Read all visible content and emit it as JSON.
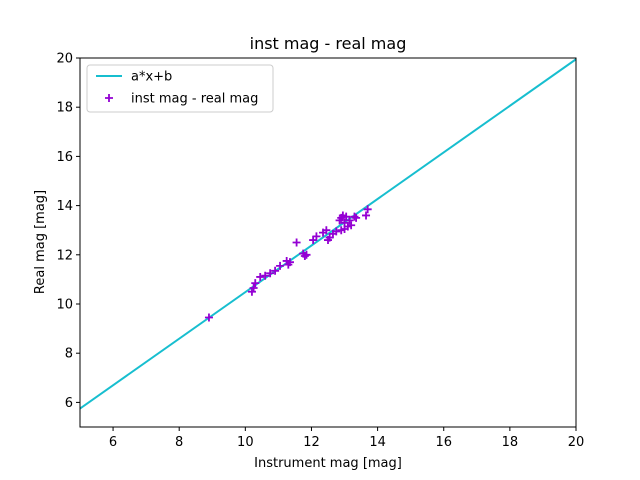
{
  "chart_data": {
    "type": "scatter",
    "title": "inst mag - real mag",
    "xlabel": "Instrument mag [mag]",
    "ylabel": "Real mag [mag]",
    "xlim": [
      5,
      20
    ],
    "ylim": [
      5,
      20
    ],
    "xticks": [
      6,
      8,
      10,
      12,
      14,
      16,
      18,
      20
    ],
    "yticks": [
      6,
      8,
      10,
      12,
      14,
      16,
      18,
      20
    ],
    "legend_position": "top-left",
    "grid": false,
    "colors": {
      "fit_line": "#17becf",
      "points": "#9400d3"
    },
    "series": [
      {
        "name": "a*x+b",
        "kind": "line",
        "x": [
          5,
          20
        ],
        "y": [
          5.75,
          19.95
        ]
      },
      {
        "name": "inst mag - real mag",
        "kind": "scatter",
        "marker": "+",
        "x": [
          8.9,
          10.2,
          10.25,
          10.3,
          10.45,
          10.6,
          10.75,
          10.9,
          11.05,
          11.25,
          11.3,
          11.35,
          11.55,
          11.75,
          11.8,
          11.85,
          12.05,
          12.15,
          12.35,
          12.45,
          12.5,
          12.55,
          12.65,
          12.75,
          12.85,
          12.9,
          12.9,
          12.95,
          13.0,
          13.0,
          13.05,
          13.1,
          13.15,
          13.2,
          13.3,
          13.35,
          13.65,
          13.7
        ],
        "y": [
          9.45,
          10.5,
          10.65,
          10.85,
          11.1,
          11.15,
          11.25,
          11.35,
          11.55,
          11.75,
          11.6,
          11.7,
          12.5,
          12.05,
          11.95,
          12.0,
          12.6,
          12.75,
          12.9,
          13.0,
          12.6,
          12.7,
          12.85,
          12.95,
          13.4,
          13.0,
          13.5,
          13.6,
          13.05,
          13.3,
          13.55,
          13.15,
          13.4,
          13.2,
          13.55,
          13.5,
          13.6,
          13.85
        ]
      }
    ]
  }
}
